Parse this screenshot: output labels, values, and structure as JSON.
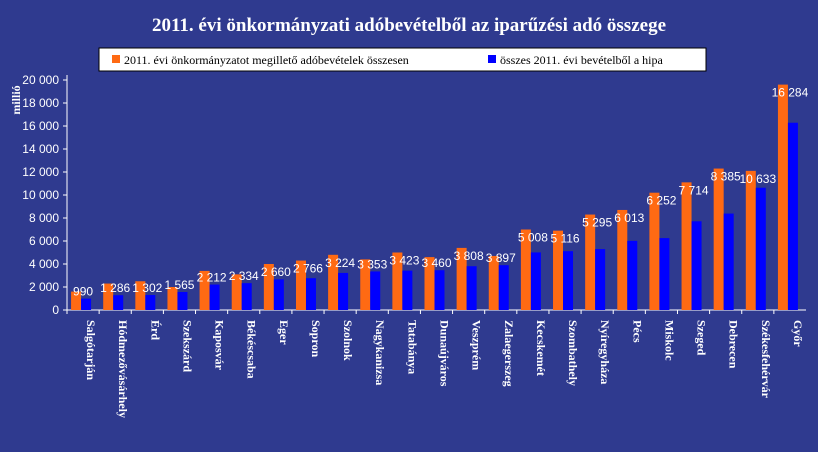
{
  "chart_data": {
    "type": "bar",
    "title": "2011. évi önkormányzati adóbevételből az iparűzési adó összege",
    "ylabel": "millió",
    "xlabel": "",
    "ylim": [
      0,
      20000
    ],
    "yticks": [
      "0",
      "2 000",
      "4 000",
      "6 000",
      "8 000",
      "10 000",
      "12 000",
      "14 000",
      "16 000",
      "18 000",
      "20 000"
    ],
    "legend_position": "top",
    "categories": [
      "Salgótarján",
      "Hódmezővásárhely",
      "Érd",
      "Szekszárd",
      "Kaposvár",
      "Békéscsaba",
      "Eger",
      "Sopron",
      "Szolnok",
      "Nagykanizsa",
      "Tatabánya",
      "Dunaújváros",
      "Veszprém",
      "Zalaegerszeg",
      "Kecskemét",
      "Szombathely",
      "Nyíregyháza",
      "Pécs",
      "Miskolc",
      "Szeged",
      "Debrecen",
      "Székesfehérvár",
      "Győr"
    ],
    "series": [
      {
        "name": "2011. évi önkormányzatot megillető adóbevételek összesen",
        "color": "#ff6a13",
        "values": [
          1600,
          2300,
          2500,
          2000,
          3400,
          3100,
          4000,
          4300,
          4800,
          4400,
          5000,
          4600,
          5400,
          4700,
          7000,
          6900,
          8300,
          8700,
          10200,
          11100,
          12300,
          12100,
          19600
        ]
      },
      {
        "name": "összes 2011. évi bevételből a hipa",
        "color": "#0000ff",
        "values": [
          990,
          1286,
          1302,
          1565,
          2212,
          2334,
          2660,
          2766,
          3224,
          3353,
          3423,
          3460,
          3808,
          3897,
          5008,
          5116,
          5295,
          6013,
          6252,
          7714,
          8385,
          10633,
          16284
        ],
        "labels": [
          "990",
          "1 286",
          "1 302",
          "1 565",
          "2 212",
          "2 334",
          "2 660",
          "2 766",
          "3 224",
          "3 353",
          "3 423",
          "3 460",
          "3 808",
          "3 897",
          "5 008",
          "5 116",
          "5 295",
          "6 013",
          "6 252",
          "7 714",
          "8 385",
          "10 633",
          "16 284"
        ]
      }
    ]
  }
}
